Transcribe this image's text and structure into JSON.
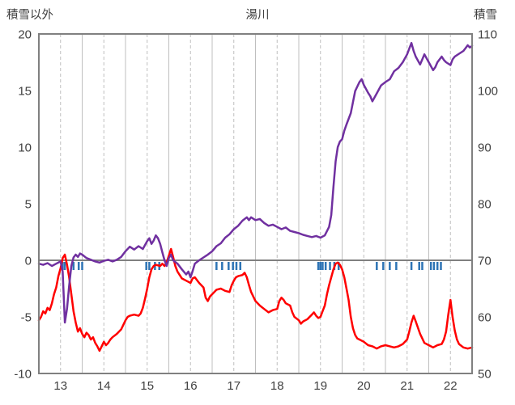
{
  "header": {
    "left_axis_title": "積雪以外",
    "chart_title": "湯川",
    "right_axis_title": "積雪"
  },
  "chart_data": {
    "type": "line",
    "title": "湯川",
    "x_axis": {
      "min": 12.5,
      "max": 22.5,
      "tick_values": [
        13,
        14,
        15,
        16,
        17,
        18,
        19,
        20,
        21,
        22
      ],
      "tick_labels": [
        "13",
        "14",
        "15",
        "16",
        "17",
        "18",
        "19",
        "20",
        "21",
        "22"
      ],
      "solid_gridlines": [
        13.5,
        14.5,
        15.5,
        16.5,
        17.5,
        18.5,
        19.5,
        20.5,
        21.5
      ]
    },
    "left_axis": {
      "label": "積雪以外",
      "min": -10,
      "max": 20,
      "ticks": [
        20,
        15,
        10,
        5,
        0,
        -5,
        -10
      ]
    },
    "right_axis": {
      "label": "積雪",
      "min": 50,
      "max": 110,
      "ticks": [
        110,
        100,
        90,
        80,
        70,
        60,
        50
      ]
    },
    "zero_line_left_value": 0,
    "colors": {
      "gridline": "#bfbfbf",
      "border": "#808080",
      "zero_line": "#808080",
      "red_series": "#ff0000",
      "purple_series": "#7030a0",
      "event_tick": "#2e74b5",
      "text": "#404040"
    },
    "series": [
      {
        "name": "積雪以外",
        "axis": "left",
        "color": "#ff0000",
        "points": [
          [
            12.5,
            -5.3
          ],
          [
            12.55,
            -5.0
          ],
          [
            12.6,
            -4.5
          ],
          [
            12.65,
            -4.7
          ],
          [
            12.7,
            -4.2
          ],
          [
            12.75,
            -4.4
          ],
          [
            12.8,
            -3.8
          ],
          [
            12.85,
            -3.0
          ],
          [
            12.9,
            -2.4
          ],
          [
            12.95,
            -1.4
          ],
          [
            13.0,
            -0.7
          ],
          [
            13.05,
            0.2
          ],
          [
            13.1,
            0.5
          ],
          [
            13.15,
            -0.4
          ],
          [
            13.2,
            -1.5
          ],
          [
            13.25,
            -3.0
          ],
          [
            13.3,
            -4.5
          ],
          [
            13.35,
            -5.5
          ],
          [
            13.4,
            -6.3
          ],
          [
            13.45,
            -6.0
          ],
          [
            13.5,
            -6.5
          ],
          [
            13.55,
            -6.8
          ],
          [
            13.6,
            -6.4
          ],
          [
            13.65,
            -6.6
          ],
          [
            13.7,
            -7.0
          ],
          [
            13.75,
            -6.8
          ],
          [
            13.8,
            -7.3
          ],
          [
            13.85,
            -7.6
          ],
          [
            13.9,
            -8.0
          ],
          [
            13.95,
            -7.6
          ],
          [
            14.0,
            -7.2
          ],
          [
            14.05,
            -7.5
          ],
          [
            14.1,
            -7.3
          ],
          [
            14.15,
            -7.0
          ],
          [
            14.2,
            -6.8
          ],
          [
            14.3,
            -6.5
          ],
          [
            14.4,
            -6.1
          ],
          [
            14.5,
            -5.3
          ],
          [
            14.55,
            -5.0
          ],
          [
            14.6,
            -4.9
          ],
          [
            14.7,
            -4.8
          ],
          [
            14.8,
            -4.9
          ],
          [
            14.85,
            -4.7
          ],
          [
            14.9,
            -4.2
          ],
          [
            14.95,
            -3.4
          ],
          [
            15.0,
            -2.5
          ],
          [
            15.05,
            -1.5
          ],
          [
            15.1,
            -0.8
          ],
          [
            15.15,
            -0.5
          ],
          [
            15.2,
            -0.4
          ],
          [
            15.3,
            -0.5
          ],
          [
            15.35,
            -0.3
          ],
          [
            15.4,
            -0.5
          ],
          [
            15.45,
            -0.2
          ],
          [
            15.5,
            0.4
          ],
          [
            15.55,
            1.0
          ],
          [
            15.6,
            0.3
          ],
          [
            15.65,
            -0.5
          ],
          [
            15.7,
            -1.0
          ],
          [
            15.75,
            -1.3
          ],
          [
            15.8,
            -1.6
          ],
          [
            15.9,
            -1.8
          ],
          [
            16.0,
            -2.0
          ],
          [
            16.05,
            -1.6
          ],
          [
            16.1,
            -1.5
          ],
          [
            16.2,
            -2.0
          ],
          [
            16.3,
            -2.4
          ],
          [
            16.35,
            -3.3
          ],
          [
            16.4,
            -3.6
          ],
          [
            16.45,
            -3.2
          ],
          [
            16.5,
            -3.0
          ],
          [
            16.6,
            -2.6
          ],
          [
            16.7,
            -2.5
          ],
          [
            16.8,
            -2.7
          ],
          [
            16.9,
            -2.8
          ],
          [
            16.95,
            -2.2
          ],
          [
            17.0,
            -1.8
          ],
          [
            17.05,
            -1.5
          ],
          [
            17.1,
            -1.4
          ],
          [
            17.2,
            -1.3
          ],
          [
            17.25,
            -1.1
          ],
          [
            17.3,
            -1.5
          ],
          [
            17.35,
            -2.2
          ],
          [
            17.4,
            -2.8
          ],
          [
            17.45,
            -3.2
          ],
          [
            17.5,
            -3.6
          ],
          [
            17.6,
            -4.0
          ],
          [
            17.7,
            -4.3
          ],
          [
            17.8,
            -4.6
          ],
          [
            17.9,
            -4.4
          ],
          [
            18.0,
            -4.3
          ],
          [
            18.05,
            -3.6
          ],
          [
            18.1,
            -3.3
          ],
          [
            18.15,
            -3.5
          ],
          [
            18.2,
            -3.8
          ],
          [
            18.3,
            -4.0
          ],
          [
            18.35,
            -4.6
          ],
          [
            18.4,
            -5.0
          ],
          [
            18.5,
            -5.3
          ],
          [
            18.55,
            -5.6
          ],
          [
            18.6,
            -5.4
          ],
          [
            18.7,
            -5.2
          ],
          [
            18.75,
            -5.0
          ],
          [
            18.8,
            -4.8
          ],
          [
            18.85,
            -4.6
          ],
          [
            18.9,
            -4.9
          ],
          [
            18.95,
            -5.1
          ],
          [
            19.0,
            -5.0
          ],
          [
            19.05,
            -4.5
          ],
          [
            19.1,
            -4.0
          ],
          [
            19.15,
            -3.0
          ],
          [
            19.2,
            -2.2
          ],
          [
            19.25,
            -1.5
          ],
          [
            19.3,
            -0.8
          ],
          [
            19.35,
            -0.3
          ],
          [
            19.4,
            -0.2
          ],
          [
            19.45,
            -0.4
          ],
          [
            19.5,
            -0.8
          ],
          [
            19.55,
            -1.5
          ],
          [
            19.6,
            -2.5
          ],
          [
            19.65,
            -3.5
          ],
          [
            19.7,
            -5.0
          ],
          [
            19.75,
            -6.0
          ],
          [
            19.8,
            -6.6
          ],
          [
            19.85,
            -6.9
          ],
          [
            19.9,
            -7.0
          ],
          [
            20.0,
            -7.2
          ],
          [
            20.1,
            -7.5
          ],
          [
            20.2,
            -7.6
          ],
          [
            20.3,
            -7.8
          ],
          [
            20.4,
            -7.6
          ],
          [
            20.5,
            -7.5
          ],
          [
            20.6,
            -7.6
          ],
          [
            20.7,
            -7.7
          ],
          [
            20.8,
            -7.6
          ],
          [
            20.9,
            -7.4
          ],
          [
            21.0,
            -7.0
          ],
          [
            21.05,
            -6.3
          ],
          [
            21.1,
            -5.5
          ],
          [
            21.15,
            -4.9
          ],
          [
            21.2,
            -5.4
          ],
          [
            21.3,
            -6.5
          ],
          [
            21.4,
            -7.3
          ],
          [
            21.5,
            -7.5
          ],
          [
            21.6,
            -7.7
          ],
          [
            21.7,
            -7.5
          ],
          [
            21.8,
            -7.4
          ],
          [
            21.85,
            -7.0
          ],
          [
            21.9,
            -6.3
          ],
          [
            21.95,
            -4.8
          ],
          [
            22.0,
            -3.5
          ],
          [
            22.05,
            -5.0
          ],
          [
            22.1,
            -6.2
          ],
          [
            22.15,
            -7.0
          ],
          [
            22.2,
            -7.4
          ],
          [
            22.3,
            -7.7
          ],
          [
            22.4,
            -7.8
          ],
          [
            22.5,
            -7.7
          ]
        ]
      },
      {
        "name": "積雪",
        "axis": "right",
        "color": "#7030a0",
        "points": [
          [
            12.5,
            69.4
          ],
          [
            12.6,
            69.2
          ],
          [
            12.7,
            69.5
          ],
          [
            12.8,
            69.0
          ],
          [
            12.9,
            69.4
          ],
          [
            13.0,
            69.8
          ],
          [
            13.05,
            68.0
          ],
          [
            13.1,
            59.0
          ],
          [
            13.15,
            61.5
          ],
          [
            13.2,
            65.5
          ],
          [
            13.25,
            69.0
          ],
          [
            13.3,
            70.5
          ],
          [
            13.35,
            71.0
          ],
          [
            13.4,
            70.6
          ],
          [
            13.45,
            71.2
          ],
          [
            13.5,
            71.0
          ],
          [
            13.6,
            70.4
          ],
          [
            13.7,
            70.1
          ],
          [
            13.8,
            69.8
          ],
          [
            13.9,
            69.6
          ],
          [
            14.0,
            69.9
          ],
          [
            14.1,
            70.1
          ],
          [
            14.2,
            69.8
          ],
          [
            14.3,
            70.1
          ],
          [
            14.4,
            70.6
          ],
          [
            14.5,
            71.6
          ],
          [
            14.6,
            72.4
          ],
          [
            14.7,
            71.9
          ],
          [
            14.8,
            72.5
          ],
          [
            14.9,
            72.0
          ],
          [
            15.0,
            73.4
          ],
          [
            15.05,
            73.9
          ],
          [
            15.1,
            72.9
          ],
          [
            15.15,
            73.5
          ],
          [
            15.2,
            74.4
          ],
          [
            15.25,
            73.9
          ],
          [
            15.3,
            72.9
          ],
          [
            15.35,
            71.4
          ],
          [
            15.4,
            70.0
          ],
          [
            15.45,
            69.0
          ],
          [
            15.5,
            70.4
          ],
          [
            15.55,
            71.0
          ],
          [
            15.6,
            70.0
          ],
          [
            15.7,
            69.4
          ],
          [
            15.8,
            68.4
          ],
          [
            15.9,
            67.5
          ],
          [
            15.95,
            68.0
          ],
          [
            16.0,
            67.0
          ],
          [
            16.05,
            68.1
          ],
          [
            16.1,
            69.4
          ],
          [
            16.2,
            70.0
          ],
          [
            16.3,
            70.5
          ],
          [
            16.4,
            71.0
          ],
          [
            16.5,
            71.6
          ],
          [
            16.6,
            72.5
          ],
          [
            16.7,
            73.0
          ],
          [
            16.8,
            74.0
          ],
          [
            16.9,
            74.6
          ],
          [
            17.0,
            75.5
          ],
          [
            17.1,
            76.1
          ],
          [
            17.2,
            77.0
          ],
          [
            17.3,
            77.6
          ],
          [
            17.35,
            77.1
          ],
          [
            17.4,
            77.6
          ],
          [
            17.5,
            77.1
          ],
          [
            17.6,
            77.3
          ],
          [
            17.7,
            76.6
          ],
          [
            17.8,
            76.1
          ],
          [
            17.9,
            76.3
          ],
          [
            18.0,
            75.9
          ],
          [
            18.1,
            75.5
          ],
          [
            18.2,
            75.8
          ],
          [
            18.3,
            75.2
          ],
          [
            18.4,
            75.0
          ],
          [
            18.5,
            74.8
          ],
          [
            18.6,
            74.5
          ],
          [
            18.7,
            74.3
          ],
          [
            18.8,
            74.1
          ],
          [
            18.9,
            74.3
          ],
          [
            19.0,
            74.0
          ],
          [
            19.1,
            74.4
          ],
          [
            19.2,
            75.9
          ],
          [
            19.25,
            78.0
          ],
          [
            19.3,
            83.0
          ],
          [
            19.35,
            87.5
          ],
          [
            19.4,
            90.0
          ],
          [
            19.45,
            91.0
          ],
          [
            19.5,
            91.4
          ],
          [
            19.55,
            92.9
          ],
          [
            19.6,
            94.0
          ],
          [
            19.7,
            96.0
          ],
          [
            19.8,
            99.9
          ],
          [
            19.9,
            101.5
          ],
          [
            19.95,
            102.0
          ],
          [
            20.0,
            101.0
          ],
          [
            20.1,
            99.6
          ],
          [
            20.15,
            99.0
          ],
          [
            20.2,
            98.1
          ],
          [
            20.3,
            99.5
          ],
          [
            20.4,
            100.9
          ],
          [
            20.5,
            101.5
          ],
          [
            20.6,
            102.0
          ],
          [
            20.7,
            103.4
          ],
          [
            20.8,
            104.0
          ],
          [
            20.9,
            105.0
          ],
          [
            21.0,
            106.4
          ],
          [
            21.05,
            107.4
          ],
          [
            21.1,
            108.4
          ],
          [
            21.15,
            107.0
          ],
          [
            21.2,
            106.0
          ],
          [
            21.3,
            104.6
          ],
          [
            21.35,
            105.5
          ],
          [
            21.4,
            106.4
          ],
          [
            21.5,
            105.0
          ],
          [
            21.6,
            103.6
          ],
          [
            21.65,
            104.1
          ],
          [
            21.7,
            105.0
          ],
          [
            21.8,
            106.0
          ],
          [
            21.85,
            105.4
          ],
          [
            21.9,
            105.0
          ],
          [
            22.0,
            104.5
          ],
          [
            22.05,
            105.5
          ],
          [
            22.1,
            106.0
          ],
          [
            22.2,
            106.5
          ],
          [
            22.3,
            107.0
          ],
          [
            22.35,
            107.5
          ],
          [
            22.4,
            108.0
          ],
          [
            22.45,
            107.6
          ],
          [
            22.5,
            107.9
          ]
        ]
      }
    ],
    "event_ticks": {
      "name": "missing-data-marks",
      "color": "#2e74b5",
      "x": [
        13.05,
        13.1,
        13.3,
        13.42,
        13.5,
        14.98,
        15.05,
        15.18,
        15.28,
        16.6,
        16.73,
        16.88,
        16.98,
        17.06,
        17.15,
        18.95,
        19.0,
        19.05,
        19.12,
        19.22,
        19.32,
        19.42,
        20.3,
        20.45,
        20.6,
        20.75,
        21.1,
        21.28,
        21.35,
        21.55,
        21.62,
        21.7,
        21.78
      ]
    },
    "legend_position": "none",
    "grid": "vertical-only"
  }
}
